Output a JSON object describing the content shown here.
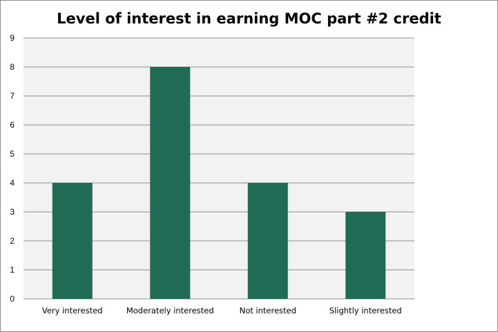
{
  "chart_data": {
    "type": "bar",
    "title": "Level of interest in earning MOC part #2 credit",
    "xlabel": "",
    "ylabel": "",
    "categories": [
      "Very interested",
      "Moderately interested",
      "Not interested",
      "Slightly interested"
    ],
    "values": [
      4,
      8,
      4,
      3
    ],
    "ylim": [
      0,
      9
    ],
    "yticks": [
      "0",
      "1",
      "2",
      "3",
      "4",
      "5",
      "6",
      "7",
      "8",
      "9"
    ],
    "grid": true,
    "legend": "none",
    "colors": {
      "bar": "#1f6b55",
      "plot_background": "#f2f2f2",
      "gridline": "#8c8c8c"
    }
  }
}
